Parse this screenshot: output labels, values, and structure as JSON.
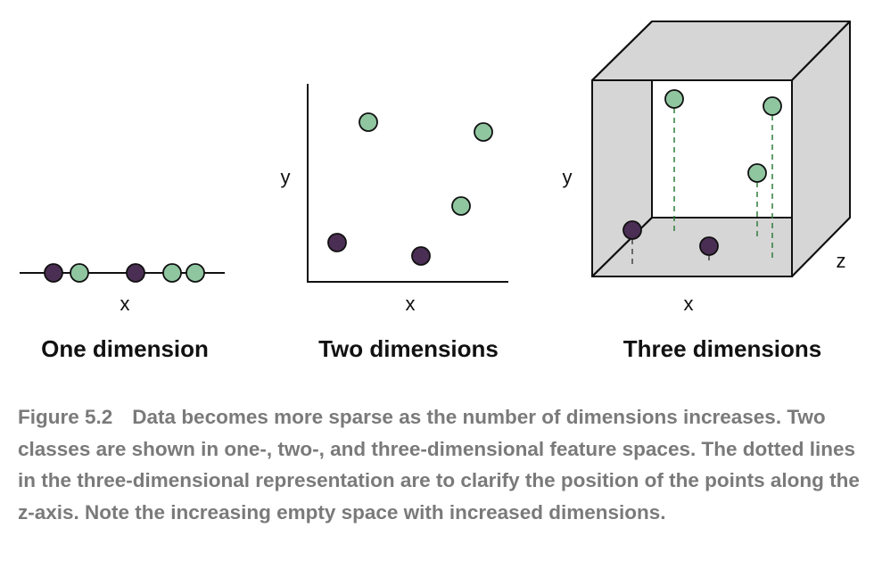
{
  "colors": {
    "class_a": "#8fc6a0",
    "class_b": "#4b2e53",
    "guide_green": "#2e7d3a",
    "guide_dark": "#444444",
    "box_face": "#d6d6d6",
    "caption": "#7a7a7a"
  },
  "panels": {
    "one": {
      "title": "One dimension",
      "x_label": "x"
    },
    "two": {
      "title": "Two dimensions",
      "x_label": "x",
      "y_label": "y"
    },
    "three": {
      "title": "Three dimensions",
      "x_label": "x",
      "y_label": "y",
      "z_label": "z"
    }
  },
  "caption": {
    "label": "Figure 5.2",
    "text": "Data becomes more sparse as the number of dimensions increases. Two classes are shown in one-, two-, and three-dimensional feature spaces. The dotted lines in the three-dimensional representation are to clarify the position of the points along the z-axis. Note the increasing empty space with increased dimensions."
  }
}
